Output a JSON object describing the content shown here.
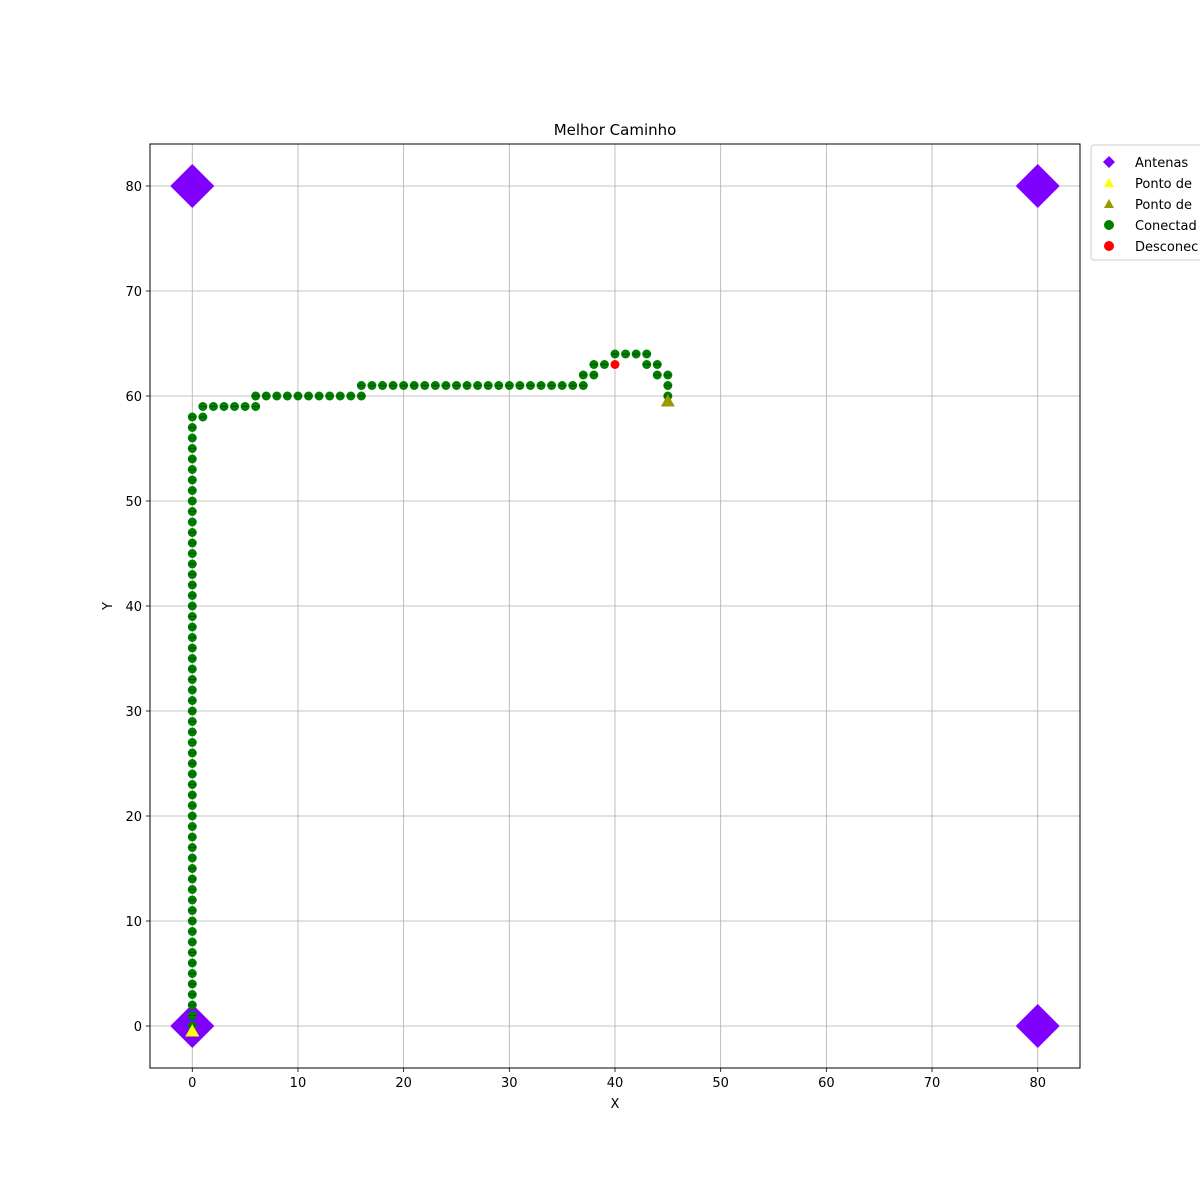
{
  "chart_data": {
    "type": "scatter",
    "title": "Melhor Caminho",
    "xlabel": "X",
    "ylabel": "Y",
    "xlim": [
      -4,
      84
    ],
    "ylim": [
      -4,
      84
    ],
    "xticks": [
      0,
      10,
      20,
      30,
      40,
      50,
      60,
      70,
      80
    ],
    "yticks": [
      0,
      10,
      20,
      30,
      40,
      50,
      60,
      70,
      80
    ],
    "grid": true,
    "legend_position": "upper right, outside plot",
    "colors": {
      "antenna": "#8000ff",
      "start": "#ffff00",
      "end": "#999900",
      "connected": "#008000",
      "disconnected": "#ff0000",
      "grid": "#b0b0b0",
      "path_line": "#00cc00"
    },
    "legend": [
      {
        "label": "Antenas",
        "marker": "diamond",
        "color": "#8000ff"
      },
      {
        "label": "Ponto de",
        "marker": "triangle",
        "color": "#ffff00"
      },
      {
        "label": "Ponto de",
        "marker": "triangle",
        "color": "#999900"
      },
      {
        "label": "Conectad",
        "marker": "circle",
        "color": "#008000"
      },
      {
        "label": "Desconec",
        "marker": "circle",
        "color": "#ff0000"
      }
    ],
    "antennas": [
      [
        0,
        0
      ],
      [
        0,
        80
      ],
      [
        80,
        80
      ],
      [
        80,
        0
      ]
    ],
    "start_point": [
      0,
      -0.5
    ],
    "end_point": [
      45,
      59.5
    ],
    "connected": [
      [
        0,
        0
      ],
      [
        0,
        1
      ],
      [
        0,
        2
      ],
      [
        0,
        3
      ],
      [
        0,
        4
      ],
      [
        0,
        5
      ],
      [
        0,
        6
      ],
      [
        0,
        7
      ],
      [
        0,
        8
      ],
      [
        0,
        9
      ],
      [
        0,
        10
      ],
      [
        0,
        11
      ],
      [
        0,
        12
      ],
      [
        0,
        13
      ],
      [
        0,
        14
      ],
      [
        0,
        15
      ],
      [
        0,
        16
      ],
      [
        0,
        17
      ],
      [
        0,
        18
      ],
      [
        0,
        19
      ],
      [
        0,
        20
      ],
      [
        0,
        21
      ],
      [
        0,
        22
      ],
      [
        0,
        23
      ],
      [
        0,
        24
      ],
      [
        0,
        25
      ],
      [
        0,
        26
      ],
      [
        0,
        27
      ],
      [
        0,
        28
      ],
      [
        0,
        29
      ],
      [
        0,
        30
      ],
      [
        0,
        31
      ],
      [
        0,
        32
      ],
      [
        0,
        33
      ],
      [
        0,
        34
      ],
      [
        0,
        35
      ],
      [
        0,
        36
      ],
      [
        0,
        37
      ],
      [
        0,
        38
      ],
      [
        0,
        39
      ],
      [
        0,
        40
      ],
      [
        0,
        41
      ],
      [
        0,
        42
      ],
      [
        0,
        43
      ],
      [
        0,
        44
      ],
      [
        0,
        45
      ],
      [
        0,
        46
      ],
      [
        0,
        47
      ],
      [
        0,
        48
      ],
      [
        0,
        49
      ],
      [
        0,
        50
      ],
      [
        0,
        51
      ],
      [
        0,
        52
      ],
      [
        0,
        53
      ],
      [
        0,
        54
      ],
      [
        0,
        55
      ],
      [
        0,
        56
      ],
      [
        0,
        57
      ],
      [
        0,
        58
      ],
      [
        1,
        58
      ],
      [
        1,
        59
      ],
      [
        2,
        59
      ],
      [
        3,
        59
      ],
      [
        4,
        59
      ],
      [
        5,
        59
      ],
      [
        6,
        59
      ],
      [
        6,
        60
      ],
      [
        7,
        60
      ],
      [
        8,
        60
      ],
      [
        9,
        60
      ],
      [
        10,
        60
      ],
      [
        11,
        60
      ],
      [
        12,
        60
      ],
      [
        13,
        60
      ],
      [
        14,
        60
      ],
      [
        15,
        60
      ],
      [
        16,
        60
      ],
      [
        16,
        61
      ],
      [
        17,
        61
      ],
      [
        18,
        61
      ],
      [
        19,
        61
      ],
      [
        20,
        61
      ],
      [
        21,
        61
      ],
      [
        22,
        61
      ],
      [
        23,
        61
      ],
      [
        24,
        61
      ],
      [
        25,
        61
      ],
      [
        26,
        61
      ],
      [
        27,
        61
      ],
      [
        28,
        61
      ],
      [
        29,
        61
      ],
      [
        30,
        61
      ],
      [
        31,
        61
      ],
      [
        32,
        61
      ],
      [
        33,
        61
      ],
      [
        34,
        61
      ],
      [
        35,
        61
      ],
      [
        36,
        61
      ],
      [
        37,
        61
      ],
      [
        37,
        62
      ],
      [
        38,
        62
      ],
      [
        38,
        63
      ],
      [
        39,
        63
      ],
      [
        40,
        64
      ],
      [
        41,
        64
      ],
      [
        42,
        64
      ],
      [
        43,
        64
      ],
      [
        43,
        63
      ],
      [
        44,
        63
      ],
      [
        44,
        62
      ],
      [
        45,
        62
      ],
      [
        45,
        61
      ],
      [
        45,
        60
      ]
    ],
    "disconnected": [
      [
        40,
        63
      ]
    ]
  }
}
